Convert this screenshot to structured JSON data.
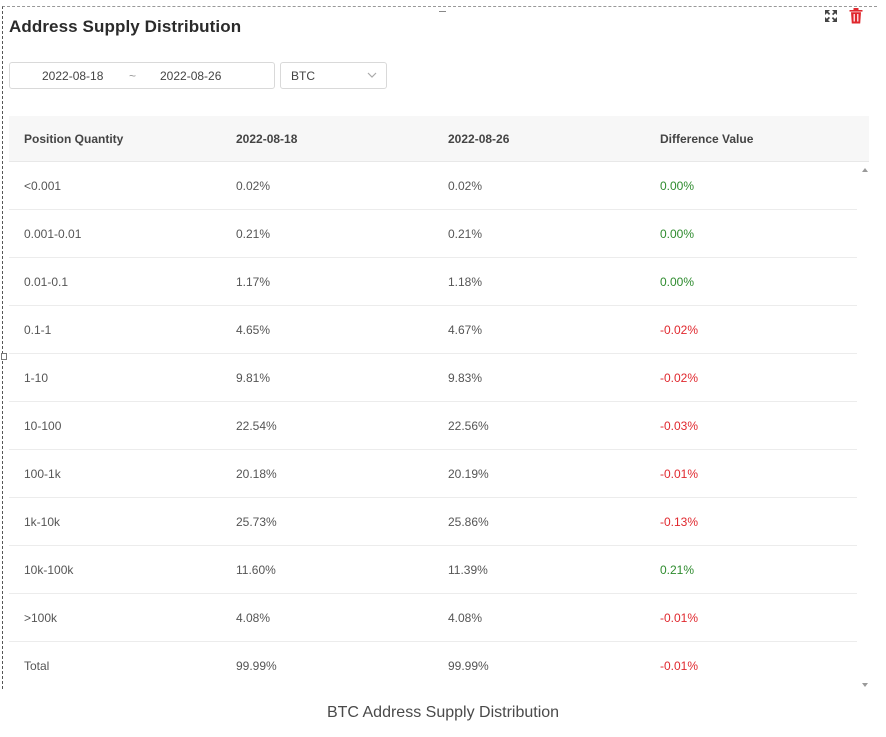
{
  "widget": {
    "title": "Address Supply Distribution",
    "icons": {
      "expand": "expand-icon",
      "delete": "trash-icon"
    },
    "accent_delete": "#e0282e"
  },
  "filters": {
    "date_start": "2022-08-18",
    "date_separator": "~",
    "date_end": "2022-08-26",
    "coin": "BTC"
  },
  "table": {
    "headers": [
      "Position Quantity",
      "2022-08-18",
      "2022-08-26",
      "Difference Value"
    ],
    "rows": [
      {
        "range": "<0.001",
        "start": "0.02%",
        "end": "0.02%",
        "diff": "0.00%",
        "trend": "pos"
      },
      {
        "range": "0.001-0.01",
        "start": "0.21%",
        "end": "0.21%",
        "diff": "0.00%",
        "trend": "pos"
      },
      {
        "range": "0.01-0.1",
        "start": "1.17%",
        "end": "1.18%",
        "diff": "0.00%",
        "trend": "pos"
      },
      {
        "range": "0.1-1",
        "start": "4.65%",
        "end": "4.67%",
        "diff": "-0.02%",
        "trend": "neg"
      },
      {
        "range": "1-10",
        "start": "9.81%",
        "end": "9.83%",
        "diff": "-0.02%",
        "trend": "neg"
      },
      {
        "range": "10-100",
        "start": "22.54%",
        "end": "22.56%",
        "diff": "-0.03%",
        "trend": "neg"
      },
      {
        "range": "100-1k",
        "start": "20.18%",
        "end": "20.19%",
        "diff": "-0.01%",
        "trend": "neg"
      },
      {
        "range": "1k-10k",
        "start": "25.73%",
        "end": "25.86%",
        "diff": "-0.13%",
        "trend": "neg"
      },
      {
        "range": "10k-100k",
        "start": "11.60%",
        "end": "11.39%",
        "diff": "0.21%",
        "trend": "pos"
      },
      {
        "range": ">100k",
        "start": "4.08%",
        "end": "4.08%",
        "diff": "-0.01%",
        "trend": "neg"
      },
      {
        "range": "Total",
        "start": "99.99%",
        "end": "99.99%",
        "diff": "-0.01%",
        "trend": "neg"
      }
    ],
    "colors": {
      "positive": "#2e8b2e",
      "negative": "#e0282e"
    }
  },
  "caption": "BTC Address Supply Distribution"
}
